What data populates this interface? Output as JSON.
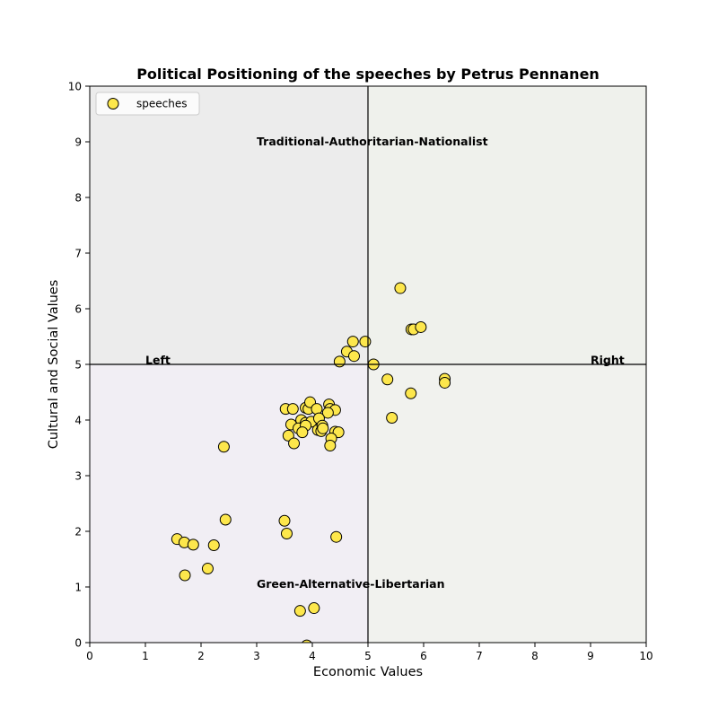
{
  "chart_data": {
    "type": "scatter",
    "title": "Political Positioning of the speeches by Petrus Pennanen",
    "xlabel": "Economic Values",
    "ylabel": "Cultural and Social Values",
    "xlim": [
      0,
      10
    ],
    "ylim": [
      0,
      10
    ],
    "xticks": [
      "0",
      "1",
      "2",
      "3",
      "4",
      "5",
      "6",
      "7",
      "8",
      "9",
      "10"
    ],
    "yticks": [
      "0",
      "1",
      "2",
      "3",
      "4",
      "5",
      "6",
      "7",
      "8",
      "9",
      "10"
    ],
    "grid": false,
    "legend": {
      "placement": "top-left",
      "entries": [
        "speeches"
      ]
    },
    "quadrant_colors": {
      "top_left": "#ececec",
      "top_right": "#eff1ec",
      "bottom_left": "#f1eef4",
      "bottom_right": "#f1f2ee"
    },
    "marker_color": "#fde74c",
    "marker_edge": "#000000",
    "quadrant_labels": [
      {
        "text": "Traditional-Authoritarian-Nationalist",
        "x": 3.0,
        "y": 9.0
      },
      {
        "text": "Green-Alternative-Libertarian",
        "x": 3.0,
        "y": 1.05
      },
      {
        "text": "Left",
        "x": 1.0,
        "y": 5.07
      },
      {
        "text": "Right",
        "x": 9.0,
        "y": 5.07
      }
    ],
    "series": [
      {
        "name": "speeches",
        "points": [
          [
            5.58,
            6.37
          ],
          [
            5.78,
            5.63
          ],
          [
            5.82,
            5.63
          ],
          [
            5.95,
            5.67
          ],
          [
            4.73,
            5.41
          ],
          [
            4.95,
            5.41
          ],
          [
            4.62,
            5.23
          ],
          [
            4.75,
            5.15
          ],
          [
            4.49,
            5.05
          ],
          [
            5.1,
            5.0
          ],
          [
            5.35,
            4.73
          ],
          [
            6.38,
            4.74
          ],
          [
            6.38,
            4.67
          ],
          [
            5.77,
            4.48
          ],
          [
            5.43,
            4.04
          ],
          [
            3.52,
            4.2
          ],
          [
            3.65,
            4.2
          ],
          [
            3.88,
            4.22
          ],
          [
            3.93,
            4.2
          ],
          [
            3.96,
            4.32
          ],
          [
            4.08,
            4.2
          ],
          [
            4.3,
            4.28
          ],
          [
            4.32,
            4.2
          ],
          [
            4.41,
            4.18
          ],
          [
            4.28,
            4.13
          ],
          [
            3.62,
            3.92
          ],
          [
            3.8,
            4.0
          ],
          [
            3.88,
            3.95
          ],
          [
            3.98,
            3.97
          ],
          [
            4.12,
            4.03
          ],
          [
            3.75,
            3.85
          ],
          [
            3.88,
            3.9
          ],
          [
            4.1,
            3.82
          ],
          [
            4.18,
            3.9
          ],
          [
            4.16,
            3.8
          ],
          [
            4.19,
            3.85
          ],
          [
            4.41,
            3.79
          ],
          [
            3.57,
            3.72
          ],
          [
            3.82,
            3.78
          ],
          [
            4.47,
            3.78
          ],
          [
            3.67,
            3.58
          ],
          [
            4.34,
            3.67
          ],
          [
            4.32,
            3.54
          ],
          [
            2.41,
            3.52
          ],
          [
            2.44,
            2.21
          ],
          [
            3.5,
            2.19
          ],
          [
            3.54,
            1.96
          ],
          [
            4.43,
            1.9
          ],
          [
            1.57,
            1.86
          ],
          [
            1.7,
            1.8
          ],
          [
            1.86,
            1.76
          ],
          [
            2.23,
            1.75
          ],
          [
            2.12,
            1.33
          ],
          [
            1.71,
            1.21
          ],
          [
            3.78,
            0.57
          ],
          [
            4.03,
            0.62
          ],
          [
            3.9,
            -0.05
          ]
        ]
      }
    ]
  }
}
